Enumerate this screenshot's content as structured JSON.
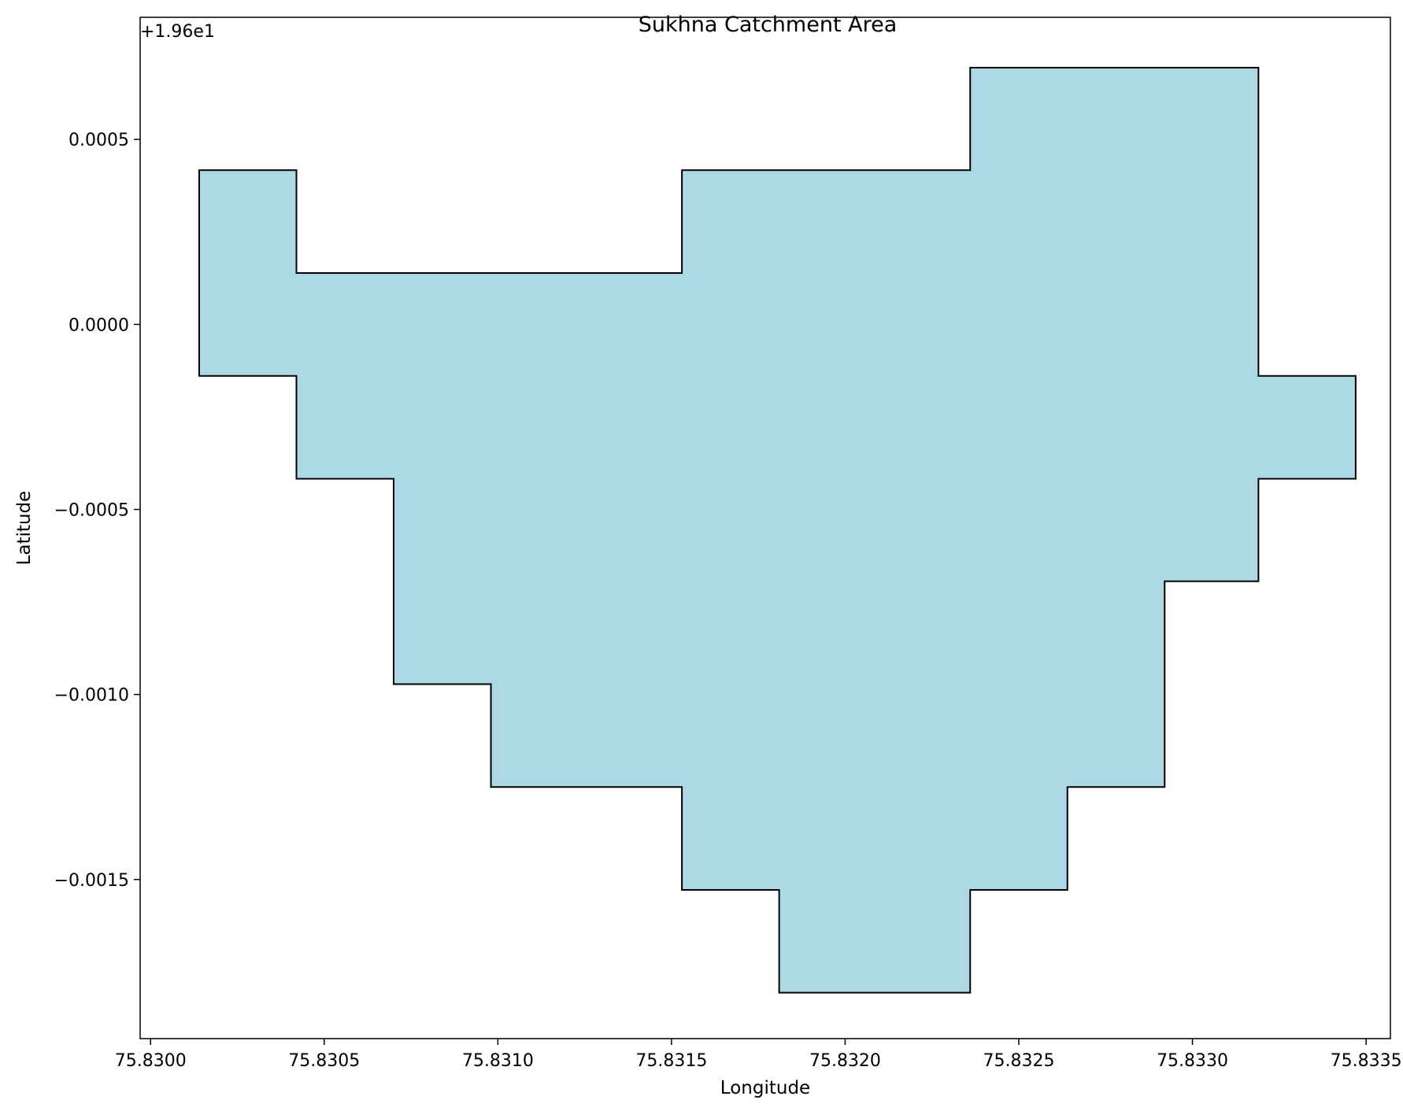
{
  "chart_data": {
    "type": "area",
    "title": "Sukhna Catchment Area",
    "xlabel": "Longitude",
    "ylabel": "Latitude",
    "y_offset_label": "+1.96e1",
    "xlim": [
      75.82997,
      75.83357
    ],
    "ylim": [
      -0.00193,
      0.00083
    ],
    "x_ticks": [
      {
        "value": 75.83,
        "label": "75.8300"
      },
      {
        "value": 75.8305,
        "label": "75.8305"
      },
      {
        "value": 75.831,
        "label": "75.8310"
      },
      {
        "value": 75.8315,
        "label": "75.8315"
      },
      {
        "value": 75.832,
        "label": "75.8320"
      },
      {
        "value": 75.8325,
        "label": "75.8325"
      },
      {
        "value": 75.833,
        "label": "75.8330"
      },
      {
        "value": 75.8335,
        "label": "75.8335"
      }
    ],
    "y_ticks": [
      {
        "value": 0.0005,
        "label": "0.0005"
      },
      {
        "value": 0.0,
        "label": "0.0000"
      },
      {
        "value": -0.0005,
        "label": "−0.0005"
      },
      {
        "value": -0.001,
        "label": "−0.0010"
      },
      {
        "value": -0.0015,
        "label": "−0.0015"
      }
    ],
    "grid": false,
    "fill_color": "#add8e6",
    "edge_color": "#000000",
    "polygon": [
      [
        75.83014,
        0.000417
      ],
      [
        75.83042,
        0.000417
      ],
      [
        75.83042,
        0.000139
      ],
      [
        75.83153,
        0.000139
      ],
      [
        75.83153,
        0.000417
      ],
      [
        75.83236,
        0.000417
      ],
      [
        75.83236,
        0.000694
      ],
      [
        75.83319,
        0.000694
      ],
      [
        75.83319,
        -0.000139
      ],
      [
        75.83347,
        -0.000139
      ],
      [
        75.83347,
        -0.000417
      ],
      [
        75.83319,
        -0.000417
      ],
      [
        75.83319,
        -0.000694
      ],
      [
        75.83292,
        -0.000694
      ],
      [
        75.83292,
        -0.00125
      ],
      [
        75.83264,
        -0.00125
      ],
      [
        75.83264,
        -0.001528
      ],
      [
        75.83236,
        -0.001528
      ],
      [
        75.83236,
        -0.001806
      ],
      [
        75.83181,
        -0.001806
      ],
      [
        75.83181,
        -0.001528
      ],
      [
        75.83153,
        -0.001528
      ],
      [
        75.83153,
        -0.00125
      ],
      [
        75.83098,
        -0.00125
      ],
      [
        75.83098,
        -0.000972
      ],
      [
        75.8307,
        -0.000972
      ],
      [
        75.8307,
        -0.000417
      ],
      [
        75.83042,
        -0.000417
      ],
      [
        75.83042,
        -0.000139
      ],
      [
        75.83014,
        -0.000139
      ]
    ]
  }
}
